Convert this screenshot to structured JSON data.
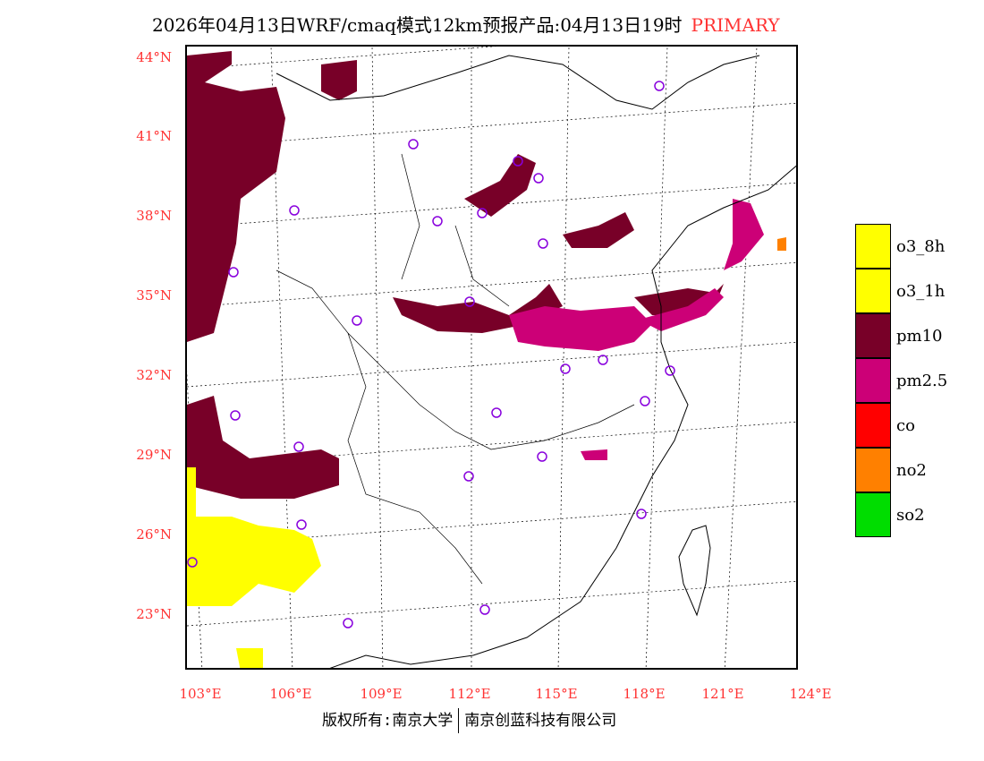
{
  "title": {
    "text": "2026年04月13日WRF/cmaq模式12km预报产品:04月13日19时",
    "product": "PRIMARY"
  },
  "lat_labels": [
    "44°N",
    "41°N",
    "38°N",
    "35°N",
    "32°N",
    "29°N",
    "26°N",
    "23°N"
  ],
  "lon_labels": [
    "103°E",
    "106°E",
    "109°E",
    "112°E",
    "115°E",
    "118°E",
    "121°E",
    "124°E"
  ],
  "legend": [
    {
      "label": "o3_8h",
      "color": "#ffff00"
    },
    {
      "label": "o3_1h",
      "color": "#ffff00"
    },
    {
      "label": "pm10",
      "color": "#780028"
    },
    {
      "label": "pm2.5",
      "color": "#cc0077"
    },
    {
      "label": "co",
      "color": "#ff0000"
    },
    {
      "label": "no2",
      "color": "#ff8000"
    },
    {
      "label": "so2",
      "color": "#00dd00"
    }
  ],
  "footer": {
    "left": "版权所有:南京大学",
    "right": "南京创蓝科技有限公司"
  }
}
